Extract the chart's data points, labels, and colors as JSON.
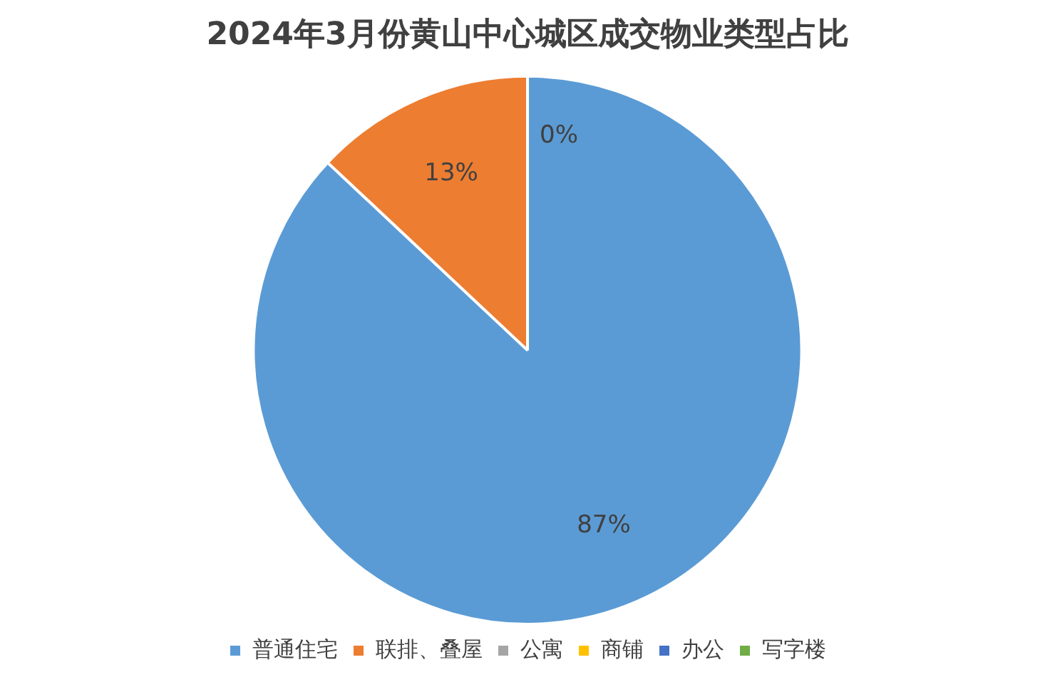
{
  "chart_data": {
    "type": "pie",
    "title": "2024年3月份黄山中心城区成交物业类型占比",
    "categories": [
      "普通住宅",
      "联排、叠屋",
      "公寓",
      "商铺",
      "办公",
      "写字楼"
    ],
    "values": [
      87,
      13,
      0,
      0,
      0,
      0
    ],
    "colors": [
      "#5b9bd5",
      "#ed7d31",
      "#a5a5a5",
      "#ffc000",
      "#4472c4",
      "#70ad47"
    ],
    "value_labels": [
      "87%",
      "13%",
      "0%",
      null,
      null,
      null
    ],
    "legend": "bottom"
  }
}
